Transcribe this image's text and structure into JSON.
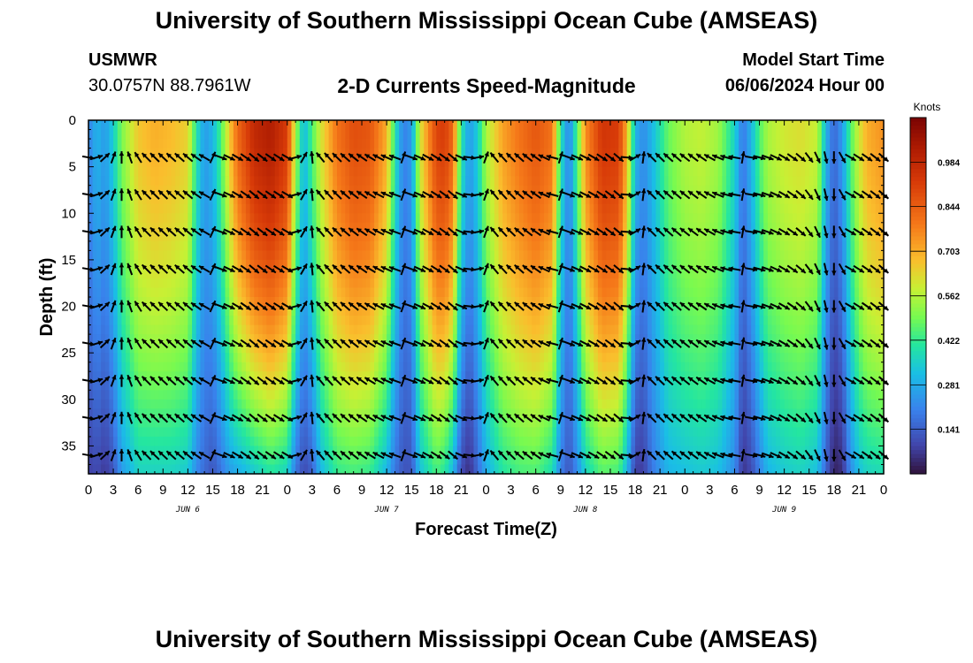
{
  "header": {
    "title": "University of Southern Mississippi Ocean Cube (AMSEAS)",
    "station": "USMWR",
    "coords": "30.0757N  88.7961W",
    "plot_title": "2-D Currents Speed-Magnitude",
    "model_start_label": "Model Start Time",
    "model_start_value": "06/06/2024 Hour 00"
  },
  "footer": {
    "title": "University of Southern Mississippi Ocean Cube (AMSEAS)"
  },
  "chart_data": {
    "type": "heatmap",
    "title": "2-D Currents Speed-Magnitude",
    "xlabel": "Forecast Time(Z)",
    "ylabel": "Depth (ft)",
    "x_tick_labels": [
      "0",
      "3",
      "6",
      "9",
      "12",
      "15",
      "18",
      "21",
      "0",
      "3",
      "6",
      "9",
      "12",
      "15",
      "18",
      "21",
      "0",
      "3",
      "6",
      "9",
      "12",
      "15",
      "18",
      "21",
      "0",
      "3",
      "6",
      "9",
      "12",
      "15",
      "18",
      "21",
      "0"
    ],
    "x_range_hours": [
      0,
      96
    ],
    "day_labels": [
      {
        "label": "JUN 6",
        "hour": 12
      },
      {
        "label": "JUN 7",
        "hour": 36
      },
      {
        "label": "JUN 8",
        "hour": 60
      },
      {
        "label": "JUN 9",
        "hour": 84
      }
    ],
    "y_tick_labels": [
      "0",
      "5",
      "10",
      "15",
      "20",
      "25",
      "30",
      "35"
    ],
    "y_ticks": [
      0,
      5,
      10,
      15,
      20,
      25,
      30,
      35
    ],
    "y_range_ft": [
      0,
      38
    ],
    "colorbar": {
      "unit": "Knots",
      "range": [
        0,
        1.125
      ],
      "tick_labels": [
        "0.984",
        "0.844",
        "0.703",
        "0.562",
        "0.422",
        "0.281",
        "0.141"
      ],
      "ticks": [
        0.984,
        0.844,
        0.703,
        0.562,
        0.422,
        0.281,
        0.141
      ]
    },
    "speed_by_hour": [
      {
        "h": 0,
        "top": 0.2,
        "bottom": 0.08
      },
      {
        "h": 1,
        "top": 0.3,
        "bottom": 0.1
      },
      {
        "h": 2,
        "top": 0.25,
        "bottom": 0.07
      },
      {
        "h": 3,
        "top": 0.35,
        "bottom": 0.12
      },
      {
        "h": 4,
        "top": 0.5,
        "bottom": 0.25
      },
      {
        "h": 5,
        "top": 0.58,
        "bottom": 0.3
      },
      {
        "h": 6,
        "top": 0.66,
        "bottom": 0.36
      },
      {
        "h": 8,
        "top": 0.7,
        "bottom": 0.36
      },
      {
        "h": 10,
        "top": 0.68,
        "bottom": 0.36
      },
      {
        "h": 12,
        "top": 0.64,
        "bottom": 0.34
      },
      {
        "h": 13,
        "top": 0.4,
        "bottom": 0.22
      },
      {
        "h": 14,
        "top": 0.25,
        "bottom": 0.16
      },
      {
        "h": 15,
        "top": 0.3,
        "bottom": 0.12
      },
      {
        "h": 16,
        "top": 0.45,
        "bottom": 0.18
      },
      {
        "h": 17,
        "top": 0.65,
        "bottom": 0.25
      },
      {
        "h": 18,
        "top": 0.82,
        "bottom": 0.28
      },
      {
        "h": 20,
        "top": 0.98,
        "bottom": 0.34
      },
      {
        "h": 22,
        "top": 1.02,
        "bottom": 0.4
      },
      {
        "h": 24,
        "top": 0.92,
        "bottom": 0.36
      },
      {
        "h": 25,
        "top": 0.55,
        "bottom": 0.18
      },
      {
        "h": 26,
        "top": 0.3,
        "bottom": 0.1
      },
      {
        "h": 27,
        "top": 0.45,
        "bottom": 0.14
      },
      {
        "h": 28,
        "top": 0.6,
        "bottom": 0.3
      },
      {
        "h": 30,
        "top": 0.8,
        "bottom": 0.42
      },
      {
        "h": 32,
        "top": 0.88,
        "bottom": 0.44
      },
      {
        "h": 34,
        "top": 0.86,
        "bottom": 0.42
      },
      {
        "h": 36,
        "top": 0.7,
        "bottom": 0.3
      },
      {
        "h": 37,
        "top": 0.4,
        "bottom": 0.18
      },
      {
        "h": 38,
        "top": 0.2,
        "bottom": 0.12
      },
      {
        "h": 39,
        "top": 0.25,
        "bottom": 0.12
      },
      {
        "h": 40,
        "top": 0.6,
        "bottom": 0.32
      },
      {
        "h": 42,
        "top": 0.9,
        "bottom": 0.44
      },
      {
        "h": 43,
        "top": 0.92,
        "bottom": 0.4
      },
      {
        "h": 44,
        "top": 0.82,
        "bottom": 0.3
      },
      {
        "h": 45,
        "top": 0.4,
        "bottom": 0.1
      },
      {
        "h": 46,
        "top": 0.25,
        "bottom": 0.05
      },
      {
        "h": 47,
        "top": 0.35,
        "bottom": 0.16
      },
      {
        "h": 48,
        "top": 0.55,
        "bottom": 0.28
      },
      {
        "h": 50,
        "top": 0.72,
        "bottom": 0.4
      },
      {
        "h": 52,
        "top": 0.8,
        "bottom": 0.44
      },
      {
        "h": 54,
        "top": 0.86,
        "bottom": 0.45
      },
      {
        "h": 56,
        "top": 0.8,
        "bottom": 0.38
      },
      {
        "h": 57,
        "top": 0.4,
        "bottom": 0.2
      },
      {
        "h": 58,
        "top": 0.2,
        "bottom": 0.12
      },
      {
        "h": 59,
        "top": 0.45,
        "bottom": 0.22
      },
      {
        "h": 60,
        "top": 0.75,
        "bottom": 0.36
      },
      {
        "h": 62,
        "top": 0.94,
        "bottom": 0.46
      },
      {
        "h": 64,
        "top": 0.92,
        "bottom": 0.44
      },
      {
        "h": 65,
        "top": 0.7,
        "bottom": 0.3
      },
      {
        "h": 66,
        "top": 0.3,
        "bottom": 0.08
      },
      {
        "h": 67,
        "top": 0.22,
        "bottom": 0.08
      },
      {
        "h": 68,
        "top": 0.3,
        "bottom": 0.18
      },
      {
        "h": 70,
        "top": 0.48,
        "bottom": 0.3
      },
      {
        "h": 72,
        "top": 0.56,
        "bottom": 0.32
      },
      {
        "h": 74,
        "top": 0.58,
        "bottom": 0.34
      },
      {
        "h": 76,
        "top": 0.54,
        "bottom": 0.32
      },
      {
        "h": 78,
        "top": 0.36,
        "bottom": 0.22
      },
      {
        "h": 79,
        "top": 0.18,
        "bottom": 0.06
      },
      {
        "h": 80,
        "top": 0.3,
        "bottom": 0.1
      },
      {
        "h": 81,
        "top": 0.45,
        "bottom": 0.2
      },
      {
        "h": 82,
        "top": 0.55,
        "bottom": 0.3
      },
      {
        "h": 84,
        "top": 0.6,
        "bottom": 0.34
      },
      {
        "h": 86,
        "top": 0.62,
        "bottom": 0.36
      },
      {
        "h": 88,
        "top": 0.58,
        "bottom": 0.32
      },
      {
        "h": 89,
        "top": 0.3,
        "bottom": 0.15
      },
      {
        "h": 90,
        "top": 0.15,
        "bottom": 0.03
      },
      {
        "h": 91,
        "top": 0.25,
        "bottom": 0.05
      },
      {
        "h": 92,
        "top": 0.45,
        "bottom": 0.22
      },
      {
        "h": 93,
        "top": 0.6,
        "bottom": 0.32
      },
      {
        "h": 94,
        "top": 0.7,
        "bottom": 0.36
      },
      {
        "h": 96,
        "top": 0.75,
        "bottom": 0.38
      }
    ],
    "arrow_depths_ft": [
      4,
      8,
      12,
      16,
      20,
      24,
      28,
      32,
      36
    ],
    "arrow_hours": [
      0,
      1,
      2,
      3,
      4,
      5,
      6,
      7,
      8,
      9,
      10,
      11,
      12,
      13,
      14,
      15,
      16,
      17,
      18,
      19,
      20,
      21,
      22,
      23,
      24,
      25,
      26,
      27,
      28,
      29,
      30,
      31,
      32,
      33,
      34,
      35,
      36,
      37,
      38,
      39,
      40,
      41,
      42,
      43,
      44,
      45,
      46,
      47,
      48,
      49,
      50,
      51,
      52,
      53,
      54,
      55,
      56,
      57,
      58,
      59,
      60,
      61,
      62,
      63,
      64,
      65,
      66,
      67,
      68,
      69,
      70,
      71,
      72,
      73,
      74,
      75,
      76,
      77,
      78,
      79,
      80,
      81,
      82,
      83,
      84,
      85,
      86,
      87,
      88,
      89,
      90,
      91,
      92,
      93,
      94,
      95,
      96
    ],
    "arrow_direction_deg_by_hour": [
      {
        "h": 0,
        "dir": 100
      },
      {
        "h": 3,
        "dir": 20
      },
      {
        "h": 5,
        "dir": -20
      },
      {
        "h": 7,
        "dir": -45
      },
      {
        "h": 12,
        "dir": -50
      },
      {
        "h": 14,
        "dir": -60
      },
      {
        "h": 16,
        "dir": 110
      },
      {
        "h": 20,
        "dir": 130
      },
      {
        "h": 24,
        "dir": 120
      },
      {
        "h": 26,
        "dir": 30
      },
      {
        "h": 28,
        "dir": -40
      },
      {
        "h": 33,
        "dir": -55
      },
      {
        "h": 37,
        "dir": -70
      },
      {
        "h": 39,
        "dir": 110
      },
      {
        "h": 44,
        "dir": 130
      },
      {
        "h": 47,
        "dir": 80
      },
      {
        "h": 49,
        "dir": -40
      },
      {
        "h": 54,
        "dir": -55
      },
      {
        "h": 56,
        "dir": -75
      },
      {
        "h": 58,
        "dir": 110
      },
      {
        "h": 64,
        "dir": 130
      },
      {
        "h": 66,
        "dir": 60
      },
      {
        "h": 68,
        "dir": -45
      },
      {
        "h": 74,
        "dir": -55
      },
      {
        "h": 78,
        "dir": -80
      },
      {
        "h": 80,
        "dir": 100
      },
      {
        "h": 86,
        "dir": 130
      },
      {
        "h": 90,
        "dir": 180
      },
      {
        "h": 92,
        "dir": 120
      },
      {
        "h": 96,
        "dir": 130
      }
    ]
  }
}
